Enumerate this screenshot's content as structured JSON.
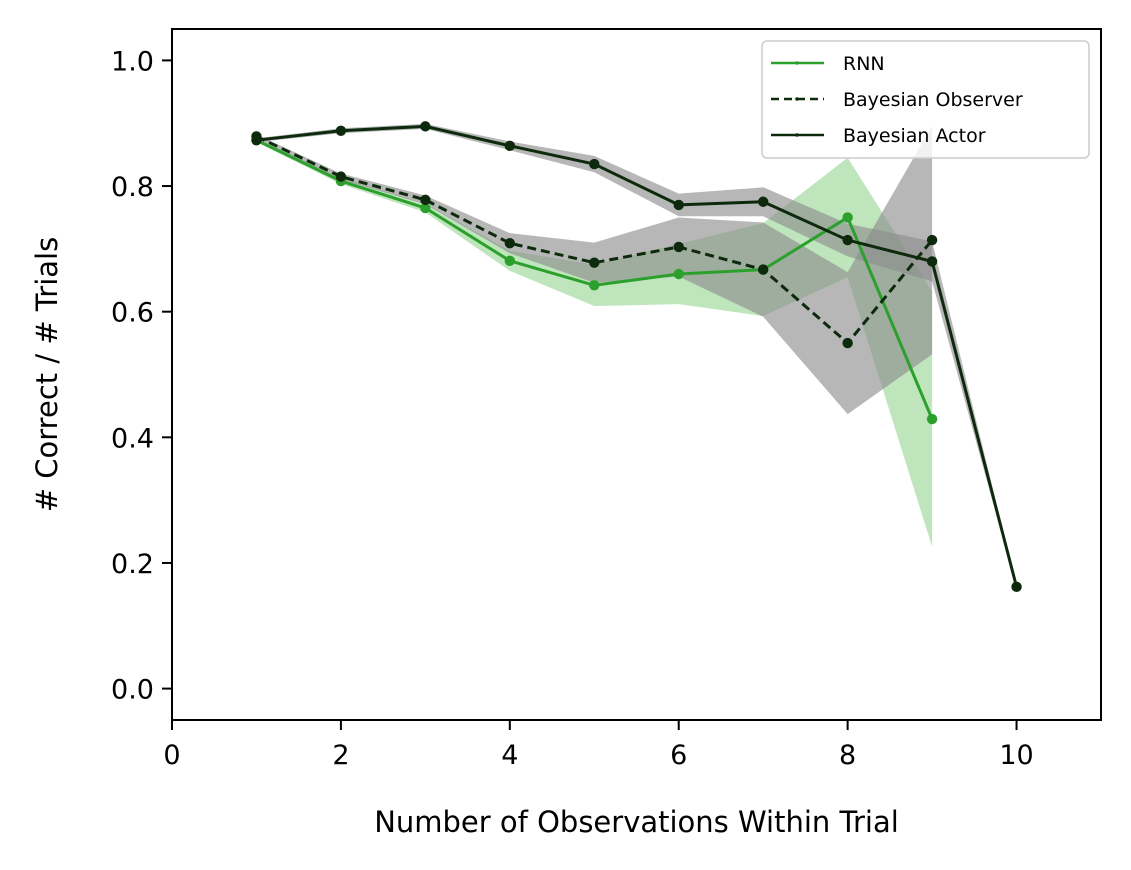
{
  "chart_data": {
    "type": "line",
    "title": "",
    "xlabel": "Number of Observations Within Trial",
    "ylabel": "# Correct / # Trials",
    "xlim": [
      0,
      11
    ],
    "ylim": [
      -0.05,
      1.05
    ],
    "xticks": [
      0,
      2,
      4,
      6,
      8,
      10
    ],
    "yticks": [
      0.0,
      0.2,
      0.4,
      0.6,
      0.8,
      1.0
    ],
    "xtick_labels": [
      "0",
      "2",
      "4",
      "6",
      "8",
      "10"
    ],
    "ytick_labels": [
      "0.0",
      "0.2",
      "0.4",
      "0.6",
      "0.8",
      "1.0"
    ],
    "grid": false,
    "legend_position": "top-right",
    "series": [
      {
        "name": "RNN",
        "color": "#2ca02c",
        "band_color": "#98d594",
        "linestyle": "solid",
        "x": [
          1,
          2,
          3,
          4,
          5,
          6,
          7,
          8,
          9
        ],
        "y": [
          0.873,
          0.808,
          0.765,
          0.681,
          0.642,
          0.66,
          0.667,
          0.75,
          0.429
        ],
        "lower": [
          0.87,
          0.803,
          0.758,
          0.665,
          0.609,
          0.612,
          0.593,
          0.655,
          0.226
        ],
        "upper": [
          0.876,
          0.813,
          0.772,
          0.697,
          0.675,
          0.708,
          0.741,
          0.845,
          0.632
        ]
      },
      {
        "name": "Bayesian Observer",
        "color": "#0d2a0d",
        "band_color": "#8a8a8a",
        "linestyle": "dashed",
        "x": [
          1,
          2,
          3,
          4,
          5,
          6,
          7,
          8,
          9
        ],
        "y": [
          0.879,
          0.815,
          0.778,
          0.709,
          0.678,
          0.703,
          0.667,
          0.55,
          0.714
        ],
        "lower": [
          0.876,
          0.81,
          0.771,
          0.693,
          0.646,
          0.656,
          0.592,
          0.437,
          0.532
        ],
        "upper": [
          0.882,
          0.82,
          0.785,
          0.725,
          0.71,
          0.75,
          0.742,
          0.663,
          0.896
        ]
      },
      {
        "name": "Bayesian Actor",
        "color": "#0d2a0d",
        "band_color": "#8a8a8a",
        "linestyle": "solid",
        "x": [
          1,
          2,
          3,
          4,
          5,
          6,
          7,
          8,
          9,
          10
        ],
        "y": [
          0.873,
          0.888,
          0.895,
          0.864,
          0.835,
          0.77,
          0.775,
          0.714,
          0.68,
          0.162
        ],
        "lower": [
          0.87,
          0.884,
          0.891,
          0.857,
          0.822,
          0.752,
          0.752,
          0.688,
          0.648,
          0.159
        ],
        "upper": [
          0.876,
          0.892,
          0.899,
          0.871,
          0.848,
          0.788,
          0.798,
          0.74,
          0.712,
          0.165
        ]
      }
    ]
  }
}
